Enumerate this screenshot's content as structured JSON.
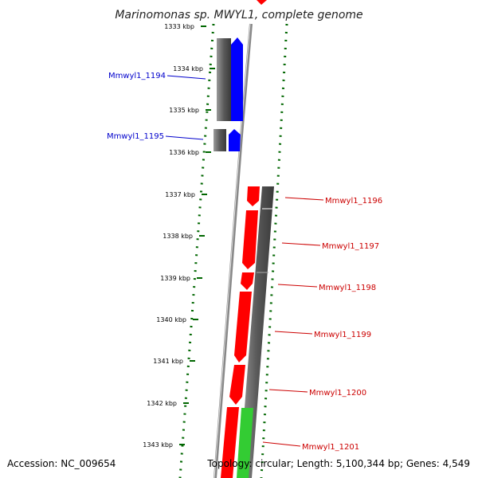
{
  "title": "Marinomonas sp. MWYL1, complete genome",
  "footer": {
    "accession": "Accession: NC_009654",
    "info": "Topology: circular; Length: 5,100,344 bp; Genes: 4,549"
  },
  "ticks": [
    "1333 kbp",
    "1334 kbp",
    "1335 kbp",
    "1336 kbp",
    "1337 kbp",
    "1338 kbp",
    "1339 kbp",
    "1340 kbp",
    "1341 kbp",
    "1342 kbp",
    "1343 kbp"
  ],
  "genes_left": [
    {
      "label": "Mmwyl1_1194",
      "color": "#0000cc"
    },
    {
      "label": "Mmwyl1_1195",
      "color": "#0000cc"
    }
  ],
  "genes_right": [
    {
      "label": "Mmwyl1_1196",
      "color": "#cc0000"
    },
    {
      "label": "Mmwyl1_1197",
      "color": "#cc0000"
    },
    {
      "label": "Mmwyl1_1198",
      "color": "#cc0000"
    },
    {
      "label": "Mmwyl1_1199",
      "color": "#cc0000"
    },
    {
      "label": "Mmwyl1_1200",
      "color": "#cc0000"
    },
    {
      "label": "Mmwyl1_1201",
      "color": "#cc0000"
    }
  ],
  "colors": {
    "forward_gene": "#ff0000",
    "reverse_gene": "#0000ff",
    "rna_gene": "#33cc33",
    "gc_track": "#666666",
    "backbone": "#888888",
    "tick_dots": "#006600"
  }
}
